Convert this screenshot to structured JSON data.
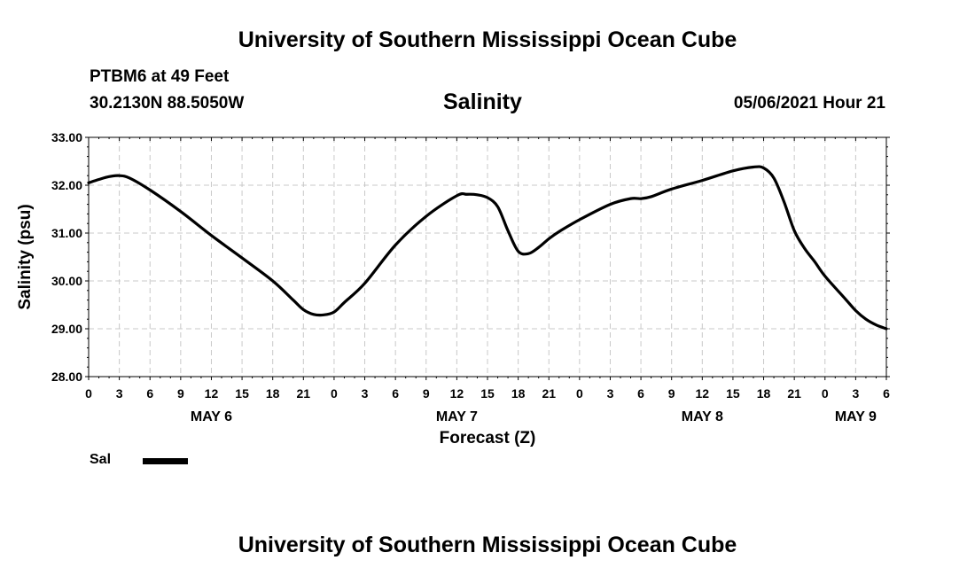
{
  "header": {
    "title": "University of Southern Mississippi Ocean Cube",
    "station": "PTBM6 at 49 Feet",
    "coordinates": "30.2130N  88.5050W",
    "chart_title": "Salinity",
    "run_time": "05/06/2021 Hour 21"
  },
  "footer": {
    "title": "University of Southern Mississippi Ocean Cube"
  },
  "legend": {
    "label": "Sal",
    "color": "#000000"
  },
  "chart_data": {
    "type": "line",
    "title": "Salinity",
    "xlabel": "Forecast (Z)",
    "ylabel": "Salinity (psu)",
    "ylim": [
      28.0,
      33.0
    ],
    "xlim": [
      0,
      78
    ],
    "y_ticks": [
      "28.00",
      "29.00",
      "30.00",
      "31.00",
      "32.00",
      "33.00"
    ],
    "x_tick_labels": [
      "0",
      "3",
      "6",
      "9",
      "12",
      "15",
      "18",
      "21",
      "0",
      "3",
      "6",
      "9",
      "12",
      "15",
      "18",
      "21",
      "0",
      "3",
      "6",
      "9",
      "12",
      "15",
      "18",
      "21",
      "0",
      "3",
      "6"
    ],
    "day_labels": [
      {
        "label": "MAY 6",
        "hour": 12
      },
      {
        "label": "MAY 7",
        "hour": 36
      },
      {
        "label": "MAY 8",
        "hour": 60
      },
      {
        "label": "MAY 9",
        "hour": 75
      }
    ],
    "grid": true,
    "line_color": "#000000",
    "series": [
      {
        "name": "Sal",
        "x": [
          0,
          1,
          2,
          3,
          4,
          6,
          9,
          12,
          15,
          18,
          20,
          21,
          22,
          23,
          24,
          25,
          27,
          30,
          33,
          36,
          37,
          38,
          39,
          40,
          41,
          42,
          43,
          44,
          45,
          46,
          48,
          51,
          53,
          54,
          55,
          57,
          60,
          63,
          65,
          66,
          67,
          68,
          69,
          70,
          71,
          72,
          74,
          75,
          76,
          77,
          78
        ],
        "values": [
          32.05,
          32.12,
          32.18,
          32.2,
          32.15,
          31.9,
          31.45,
          30.95,
          30.48,
          30.0,
          29.6,
          29.4,
          29.3,
          29.29,
          29.35,
          29.55,
          29.95,
          30.75,
          31.35,
          31.78,
          31.81,
          31.8,
          31.74,
          31.55,
          31.05,
          30.62,
          30.57,
          30.7,
          30.88,
          31.03,
          31.28,
          31.6,
          31.72,
          31.72,
          31.76,
          31.92,
          32.1,
          32.3,
          32.38,
          32.36,
          32.15,
          31.65,
          31.05,
          30.68,
          30.4,
          30.1,
          29.62,
          29.38,
          29.2,
          29.08,
          29.0
        ]
      }
    ]
  }
}
